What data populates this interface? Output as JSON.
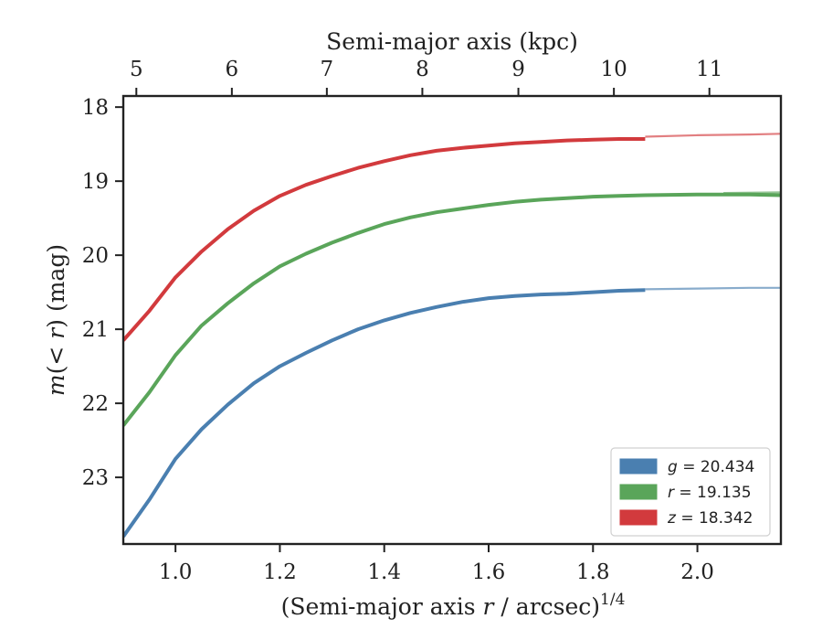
{
  "chart_data": {
    "type": "line",
    "xlabel_parts": [
      "(Semi-major axis ",
      "r",
      " / arcsec)",
      "1/4"
    ],
    "ylabel_parts": [
      "m",
      "(< ",
      "r",
      ") (mag)"
    ],
    "top_xlabel": "Semi-major axis (kpc)",
    "xlim": [
      0.9,
      2.16
    ],
    "ylim": [
      23.9,
      17.85
    ],
    "y_inverted": true,
    "x_ticks": [
      1.0,
      1.2,
      1.4,
      1.6,
      1.8,
      2.0
    ],
    "x_tick_labels": [
      "1.0",
      "1.2",
      "1.4",
      "1.6",
      "1.8",
      "2.0"
    ],
    "y_ticks": [
      18,
      19,
      20,
      21,
      22,
      23
    ],
    "y_tick_labels": [
      "18",
      "19",
      "20",
      "21",
      "22",
      "23"
    ],
    "top_ticks": [
      5,
      6,
      7,
      8,
      9,
      10,
      11
    ],
    "top_tick_labels": [
      "5",
      "6",
      "7",
      "8",
      "9",
      "10",
      "11"
    ],
    "top_axis_x_positions": [
      0.925,
      1.108,
      1.29,
      1.473,
      1.657,
      1.84,
      2.023
    ],
    "grid": false,
    "legend_position": "bottom-right",
    "legend": [
      {
        "label": "g = 20.434",
        "var": "g",
        "value": "20.434",
        "color": "#4a7fb0"
      },
      {
        "label": "r = 19.135",
        "var": "r",
        "value": "19.135",
        "color": "#5aa55a"
      },
      {
        "label": "z = 18.342",
        "var": "z",
        "value": "18.342",
        "color": "#d23a3d"
      }
    ],
    "series": [
      {
        "name": "z",
        "color": "#d23a3d",
        "x": [
          0.9,
          0.95,
          1.0,
          1.05,
          1.1,
          1.15,
          1.2,
          1.25,
          1.3,
          1.35,
          1.4,
          1.45,
          1.5,
          1.55,
          1.6,
          1.65,
          1.7,
          1.75,
          1.8,
          1.85,
          1.9
        ],
        "y": [
          21.15,
          20.75,
          20.3,
          19.95,
          19.65,
          19.4,
          19.2,
          19.05,
          18.93,
          18.82,
          18.73,
          18.65,
          18.59,
          18.55,
          18.52,
          18.49,
          18.47,
          18.45,
          18.44,
          18.43,
          18.43
        ],
        "extension": {
          "x": [
            1.9,
            2.0,
            2.1,
            2.16
          ],
          "y": [
            18.4,
            18.38,
            18.37,
            18.36
          ]
        }
      },
      {
        "name": "r",
        "color": "#5aa55a",
        "x": [
          0.9,
          0.95,
          1.0,
          1.05,
          1.1,
          1.15,
          1.2,
          1.25,
          1.3,
          1.35,
          1.4,
          1.45,
          1.5,
          1.55,
          1.6,
          1.65,
          1.7,
          1.75,
          1.8,
          1.85,
          1.9,
          2.0,
          2.1,
          2.16
        ],
        "y": [
          22.3,
          21.85,
          21.35,
          20.95,
          20.65,
          20.38,
          20.15,
          19.98,
          19.83,
          19.7,
          19.58,
          19.49,
          19.42,
          19.37,
          19.32,
          19.28,
          19.25,
          19.23,
          19.21,
          19.2,
          19.19,
          19.18,
          19.18,
          19.19
        ],
        "extension": {
          "x": [
            2.05,
            2.16
          ],
          "y": [
            19.16,
            19.15
          ]
        }
      },
      {
        "name": "g",
        "color": "#4a7fb0",
        "x": [
          0.9,
          0.95,
          1.0,
          1.05,
          1.1,
          1.15,
          1.2,
          1.25,
          1.3,
          1.35,
          1.4,
          1.45,
          1.5,
          1.55,
          1.6,
          1.65,
          1.7,
          1.75,
          1.8,
          1.85,
          1.9
        ],
        "y": [
          23.8,
          23.3,
          22.75,
          22.35,
          22.02,
          21.73,
          21.5,
          21.32,
          21.15,
          21.0,
          20.88,
          20.78,
          20.7,
          20.63,
          20.58,
          20.55,
          20.53,
          20.52,
          20.5,
          20.48,
          20.47
        ],
        "extension": {
          "x": [
            1.9,
            2.0,
            2.1,
            2.16
          ],
          "y": [
            20.46,
            20.45,
            20.44,
            20.44
          ]
        }
      }
    ]
  }
}
